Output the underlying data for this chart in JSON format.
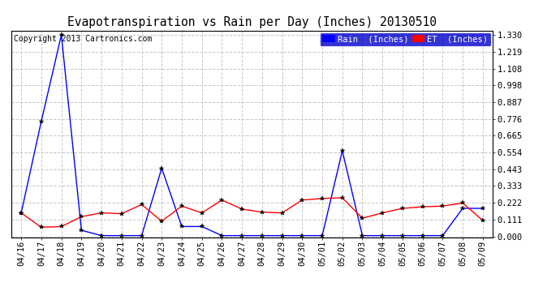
{
  "title": "Evapotranspiration vs Rain per Day (Inches) 20130510",
  "copyright": "Copyright 2013 Cartronics.com",
  "legend_rain": "Rain  (Inches)",
  "legend_et": "ET  (Inches)",
  "x_labels": [
    "04/16",
    "04/17",
    "04/18",
    "04/19",
    "04/20",
    "04/21",
    "04/22",
    "04/23",
    "04/24",
    "04/25",
    "04/26",
    "04/27",
    "04/28",
    "04/29",
    "04/30",
    "05/01",
    "05/02",
    "05/03",
    "05/04",
    "05/05",
    "05/06",
    "05/07",
    "05/08",
    "05/09"
  ],
  "rain_data": [
    0.155,
    0.76,
    1.33,
    0.04,
    0.005,
    0.005,
    0.005,
    0.45,
    0.065,
    0.065,
    0.005,
    0.005,
    0.005,
    0.005,
    0.005,
    0.005,
    0.565,
    0.005,
    0.005,
    0.005,
    0.005,
    0.005,
    0.185,
    0.185
  ],
  "et_data": [
    0.155,
    0.06,
    0.065,
    0.13,
    0.155,
    0.15,
    0.21,
    0.1,
    0.2,
    0.155,
    0.24,
    0.18,
    0.16,
    0.155,
    0.24,
    0.25,
    0.255,
    0.12,
    0.155,
    0.185,
    0.195,
    0.2,
    0.22,
    0.105
  ],
  "rain_color": "#0000ff",
  "et_color": "#ff0000",
  "background_color": "#ffffff",
  "grid_color": "#c8c8c8",
  "y_ticks": [
    0.0,
    0.111,
    0.222,
    0.333,
    0.443,
    0.554,
    0.665,
    0.776,
    0.887,
    0.998,
    1.108,
    1.219,
    1.33
  ],
  "ylim": [
    -0.005,
    1.36
  ],
  "title_fontsize": 10.5,
  "tick_fontsize": 7.5,
  "copyright_fontsize": 7,
  "legend_fontsize": 7.5,
  "legend_bg_color": "#0000cc",
  "legend_text_color": "#ffffff",
  "rain_legend_bg": "#0000ff",
  "et_legend_bg": "#ff0000"
}
